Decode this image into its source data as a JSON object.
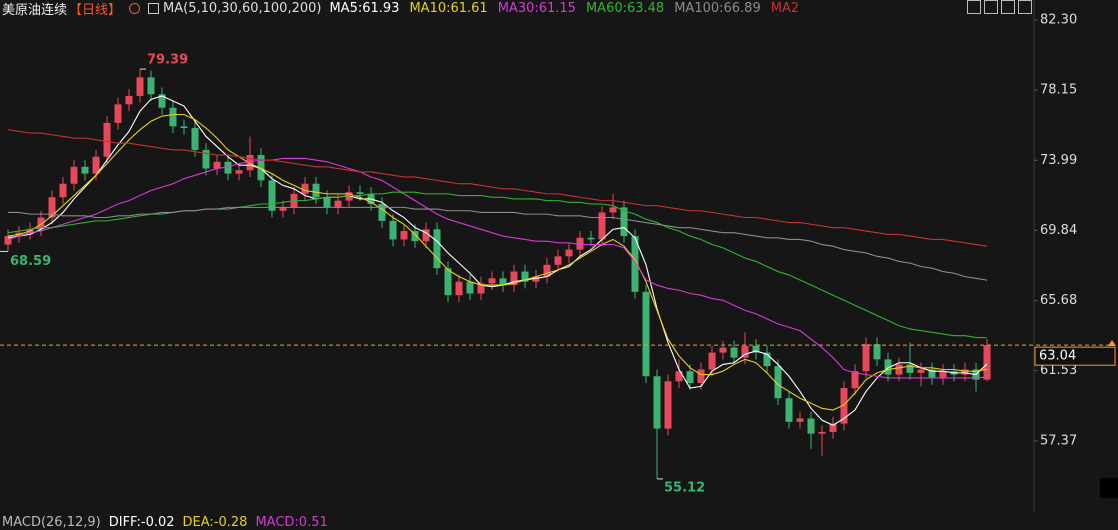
{
  "chart_data": {
    "type": "candlestick",
    "title": "美原油连续",
    "period": "【日线】",
    "ma_header": "MA(5,10,30,60,100,200)",
    "up_color": "#e8485a",
    "down_color": "#3cb371",
    "open": [
      69.0,
      69.5,
      69.7,
      69.9,
      70.6,
      71.8,
      72.6,
      73.6,
      73.2,
      74.2,
      76.2,
      77.3,
      77.8,
      78.9,
      77.9,
      77.1,
      76.0,
      75.9,
      74.6,
      73.5,
      73.9,
      73.2,
      73.4,
      74.3,
      72.8,
      71.0,
      71.2,
      72.0,
      72.6,
      71.8,
      71.2,
      71.6,
      72.1,
      72.0,
      71.4,
      70.4,
      69.3,
      69.8,
      69.2,
      69.9,
      67.6,
      66.0,
      66.8,
      66.1,
      66.7,
      67.0,
      66.6,
      67.4,
      66.8,
      67.1,
      67.8,
      68.3,
      68.7,
      69.4,
      69.3,
      70.9,
      71.2,
      69.5,
      66.2,
      61.2,
      58.1,
      60.9,
      61.5,
      60.8,
      61.6,
      62.6,
      62.9,
      62.3,
      63.0,
      62.6,
      61.8,
      59.9,
      58.5,
      58.7,
      57.8,
      57.9,
      58.4,
      60.5,
      61.5,
      63.1,
      62.2,
      61.3,
      61.9,
      61.4,
      61.6,
      61.1,
      61.5,
      61.3,
      61.6,
      61.0
    ],
    "high": [
      69.9,
      70.1,
      70.3,
      71.0,
      72.2,
      73.0,
      74.0,
      74.0,
      74.6,
      76.6,
      77.7,
      78.2,
      79.39,
      79.3,
      78.3,
      77.5,
      76.4,
      76.3,
      75.0,
      74.3,
      74.3,
      73.8,
      75.4,
      74.7,
      73.2,
      71.6,
      72.4,
      73.0,
      73.0,
      72.2,
      72.0,
      72.5,
      72.5,
      72.4,
      71.8,
      70.8,
      70.2,
      70.2,
      70.3,
      70.3,
      68.0,
      67.2,
      67.2,
      67.1,
      67.4,
      67.4,
      67.8,
      67.8,
      67.5,
      68.2,
      68.7,
      69.1,
      69.8,
      69.8,
      71.3,
      72.0,
      71.6,
      69.9,
      66.6,
      61.6,
      61.3,
      62.2,
      61.9,
      62.0,
      63.0,
      63.3,
      63.3,
      63.8,
      63.4,
      63.0,
      62.2,
      60.3,
      59.1,
      59.1,
      58.3,
      58.8,
      60.9,
      61.9,
      63.5,
      63.5,
      62.6,
      62.3,
      63.2,
      62.0,
      62.0,
      61.9,
      61.9,
      62.0,
      62.0,
      63.4
    ],
    "low": [
      68.59,
      69.1,
      69.3,
      69.5,
      70.2,
      71.4,
      72.2,
      72.8,
      72.8,
      73.8,
      75.8,
      76.9,
      77.4,
      77.5,
      76.7,
      75.6,
      75.5,
      74.2,
      73.1,
      73.1,
      72.8,
      72.8,
      73.0,
      72.4,
      70.6,
      70.6,
      70.8,
      71.6,
      71.4,
      70.8,
      70.8,
      71.2,
      71.6,
      71.0,
      70.0,
      68.9,
      68.9,
      68.8,
      68.8,
      67.2,
      65.6,
      65.6,
      65.7,
      65.7,
      66.3,
      66.2,
      66.2,
      66.4,
      66.4,
      66.7,
      67.4,
      67.9,
      68.3,
      68.9,
      68.9,
      70.5,
      69.1,
      65.8,
      60.8,
      55.12,
      57.7,
      60.5,
      60.4,
      60.4,
      61.2,
      62.2,
      61.9,
      61.9,
      62.2,
      61.4,
      59.5,
      58.1,
      58.1,
      56.9,
      56.5,
      57.5,
      58.0,
      60.1,
      61.1,
      61.8,
      60.9,
      60.9,
      61.0,
      60.6,
      60.7,
      60.7,
      60.9,
      60.9,
      60.3,
      60.9
    ],
    "close": [
      69.5,
      69.7,
      69.9,
      70.6,
      71.8,
      72.6,
      73.6,
      73.2,
      74.2,
      76.2,
      77.3,
      77.8,
      78.9,
      77.9,
      77.1,
      76.0,
      75.9,
      74.6,
      73.5,
      73.9,
      73.2,
      73.4,
      74.3,
      72.8,
      71.0,
      71.2,
      72.0,
      72.6,
      71.8,
      71.2,
      71.6,
      72.1,
      72.0,
      71.4,
      70.4,
      69.3,
      69.8,
      69.2,
      69.9,
      67.6,
      66.0,
      66.8,
      66.1,
      66.7,
      67.0,
      66.6,
      67.4,
      66.8,
      67.1,
      67.8,
      68.3,
      68.7,
      69.4,
      69.3,
      70.9,
      71.2,
      69.5,
      66.2,
      61.2,
      58.1,
      60.9,
      61.5,
      60.8,
      61.6,
      62.6,
      62.9,
      62.3,
      63.0,
      62.6,
      61.8,
      59.9,
      58.5,
      58.7,
      57.8,
      57.9,
      58.4,
      60.5,
      61.5,
      63.1,
      62.2,
      61.3,
      61.9,
      61.4,
      61.6,
      61.1,
      61.5,
      61.3,
      61.6,
      61.0,
      63.04
    ],
    "series": [
      {
        "name": "MA5:61.93",
        "color": "#ffffff",
        "values": [
          69.4,
          69.5,
          69.6,
          69.9,
          70.3,
          70.9,
          71.7,
          72.4,
          73.1,
          74.0,
          74.9,
          75.7,
          76.9,
          77.6,
          77.8,
          77.5,
          77.2,
          76.3,
          75.4,
          74.8,
          74.2,
          73.7,
          73.7,
          73.5,
          72.9,
          72.5,
          72.3,
          71.9,
          71.7,
          71.8,
          71.8,
          71.9,
          71.7,
          71.7,
          71.5,
          71.0,
          70.6,
          70.0,
          69.7,
          69.2,
          68.5,
          67.9,
          67.3,
          66.6,
          66.5,
          66.6,
          66.8,
          66.9,
          67.0,
          67.1,
          67.5,
          67.7,
          68.3,
          68.7,
          69.3,
          69.9,
          70.0,
          69.4,
          67.8,
          65.2,
          63.2,
          61.6,
          60.5,
          60.6,
          61.5,
          61.9,
          62.0,
          62.5,
          62.7,
          62.5,
          61.9,
          61.2,
          60.3,
          59.3,
          58.6,
          58.3,
          58.7,
          59.2,
          60.3,
          61.1,
          61.7,
          62.0,
          62.0,
          61.7,
          61.5,
          61.5,
          61.4,
          61.4,
          61.3,
          61.93
        ]
      },
      {
        "name": "MA10:61.61",
        "color": "#e6d21a",
        "values": [
          69.5,
          69.6,
          69.8,
          70.2,
          70.7,
          71.3,
          71.9,
          72.5,
          73.1,
          73.8,
          74.5,
          75.2,
          75.8,
          76.3,
          76.6,
          76.7,
          76.7,
          76.4,
          75.9,
          75.3,
          74.6,
          74.2,
          73.8,
          73.5,
          73.2,
          72.8,
          72.5,
          72.2,
          72.1,
          72.0,
          72.0,
          72.0,
          71.8,
          71.5,
          71.1,
          70.6,
          70.2,
          69.6,
          68.9,
          68.2,
          67.5,
          67.1,
          66.8,
          66.6,
          66.6,
          66.6,
          66.7,
          66.9,
          67.1,
          67.3,
          67.5,
          67.8,
          68.2,
          68.6,
          69.0,
          69.3,
          68.9,
          68.1,
          66.8,
          65.1,
          63.4,
          62.4,
          61.7,
          61.3,
          61.3,
          61.5,
          61.9,
          62.2,
          62.0,
          61.4,
          60.7,
          60.3,
          59.9,
          59.6,
          59.3,
          59.2,
          59.5,
          60.2,
          61.0,
          61.4,
          61.6,
          61.7,
          61.8,
          61.7,
          61.7,
          61.6,
          61.6,
          61.5,
          61.5,
          61.61
        ]
      },
      {
        "name": "MA30:61.15",
        "color": "#d63ad6",
        "values": [
          69.3,
          69.5,
          69.7,
          69.8,
          70.0,
          70.2,
          70.4,
          70.6,
          70.8,
          71.1,
          71.4,
          71.6,
          71.9,
          72.2,
          72.4,
          72.6,
          72.9,
          73.1,
          73.3,
          73.5,
          73.6,
          73.8,
          73.9,
          74.0,
          74.0,
          74.1,
          74.1,
          74.1,
          74.0,
          73.9,
          73.7,
          73.5,
          73.3,
          73.0,
          72.8,
          72.4,
          72.0,
          71.6,
          71.2,
          70.8,
          70.5,
          70.3,
          70.1,
          69.9,
          69.7,
          69.5,
          69.4,
          69.3,
          69.2,
          69.2,
          69.1,
          69.1,
          69.0,
          69.0,
          69.0,
          69.0,
          68.8,
          68.0,
          66.9,
          66.6,
          66.4,
          66.3,
          66.1,
          66.0,
          65.8,
          65.7,
          65.4,
          65.1,
          64.9,
          64.6,
          64.3,
          64.1,
          63.9,
          63.4,
          62.9,
          62.3,
          61.6,
          61.4,
          61.3,
          61.2,
          61.1,
          61.1,
          61.1,
          61.1,
          61.1,
          61.1,
          61.1,
          61.1,
          61.1,
          61.15
        ]
      },
      {
        "name": "MA60:63.48",
        "color": "#2fb52f",
        "values": [
          69.7,
          69.8,
          69.9,
          70.0,
          70.0,
          70.1,
          70.2,
          70.3,
          70.4,
          70.4,
          70.5,
          70.6,
          70.7,
          70.8,
          70.8,
          70.9,
          71.0,
          71.0,
          71.1,
          71.1,
          71.2,
          71.2,
          71.3,
          71.4,
          71.4,
          71.5,
          71.6,
          71.6,
          71.7,
          71.8,
          71.8,
          71.9,
          71.9,
          72.0,
          72.0,
          72.1,
          72.1,
          72.1,
          72.0,
          72.0,
          72.0,
          71.9,
          71.9,
          71.9,
          71.8,
          71.8,
          71.7,
          71.7,
          71.7,
          71.6,
          71.6,
          71.5,
          71.5,
          71.4,
          71.4,
          71.3,
          71.0,
          70.8,
          70.5,
          70.3,
          70.0,
          69.8,
          69.5,
          69.3,
          69.0,
          68.8,
          68.5,
          68.2,
          68.0,
          67.7,
          67.4,
          67.2,
          66.9,
          66.6,
          66.3,
          66.0,
          65.7,
          65.4,
          65.1,
          64.8,
          64.5,
          64.2,
          64.0,
          63.9,
          63.8,
          63.7,
          63.6,
          63.6,
          63.5,
          63.48
        ]
      },
      {
        "name": "MA100:66.89",
        "color": "#8c8c8c",
        "values": [
          70.9,
          70.9,
          70.8,
          70.8,
          70.8,
          70.7,
          70.7,
          70.7,
          70.6,
          70.6,
          70.7,
          70.7,
          70.8,
          70.8,
          70.9,
          70.9,
          71.0,
          71.0,
          71.1,
          71.1,
          71.1,
          71.2,
          71.2,
          71.2,
          71.2,
          71.2,
          71.2,
          71.2,
          71.2,
          71.2,
          71.2,
          71.2,
          71.2,
          71.2,
          71.2,
          71.2,
          71.2,
          71.1,
          71.1,
          71.1,
          71.0,
          71.0,
          71.0,
          70.9,
          70.9,
          70.9,
          70.9,
          70.8,
          70.8,
          70.8,
          70.7,
          70.7,
          70.7,
          70.6,
          70.6,
          70.6,
          70.5,
          70.4,
          70.3,
          70.2,
          70.1,
          70.0,
          70.0,
          69.9,
          69.8,
          69.7,
          69.7,
          69.6,
          69.5,
          69.4,
          69.4,
          69.3,
          69.3,
          69.2,
          69.0,
          68.9,
          68.7,
          68.6,
          68.5,
          68.3,
          68.2,
          68.0,
          67.9,
          67.7,
          67.6,
          67.4,
          67.3,
          67.1,
          67.0,
          66.89
        ]
      },
      {
        "name": "MA2",
        "color": "#c83232",
        "values": [
          75.8,
          75.7,
          75.6,
          75.6,
          75.5,
          75.4,
          75.3,
          75.3,
          75.2,
          75.1,
          75.0,
          75.0,
          74.9,
          74.8,
          74.7,
          74.6,
          74.6,
          74.5,
          74.4,
          74.3,
          74.3,
          74.2,
          74.1,
          74.0,
          74.0,
          73.9,
          73.8,
          73.7,
          73.6,
          73.6,
          73.5,
          73.4,
          73.3,
          73.3,
          73.2,
          73.1,
          73.0,
          73.0,
          72.9,
          72.8,
          72.7,
          72.6,
          72.6,
          72.5,
          72.4,
          72.3,
          72.3,
          72.2,
          72.1,
          72.0,
          72.0,
          71.9,
          71.8,
          71.7,
          71.6,
          71.6,
          71.5,
          71.4,
          71.3,
          71.3,
          71.2,
          71.1,
          71.0,
          71.0,
          70.9,
          70.8,
          70.7,
          70.6,
          70.6,
          70.5,
          70.4,
          70.3,
          70.3,
          70.2,
          70.1,
          70.0,
          70.0,
          69.9,
          69.8,
          69.7,
          69.6,
          69.6,
          69.5,
          69.4,
          69.3,
          69.3,
          69.2,
          69.1,
          69.0,
          68.9
        ]
      }
    ],
    "ylim": [
      53.28,
      83.48
    ],
    "yticks": [
      {
        "value": 82.3,
        "label": "82.30"
      },
      78.15,
      73.99,
      69.84,
      65.68,
      61.53,
      57.37
    ],
    "grid": false,
    "last_price_color": "#f0a030",
    "macd_legend": [
      {
        "text": "MACD(26,12,9)",
        "color": "#bbbbbb"
      },
      {
        "text": "DIFF:-0.02",
        "color": "#ffffff"
      },
      {
        "text": "DEA:-0.28",
        "color": "#e6d21a"
      },
      {
        "text": "MACD:0.51",
        "color": "#d63ad6"
      }
    ]
  }
}
